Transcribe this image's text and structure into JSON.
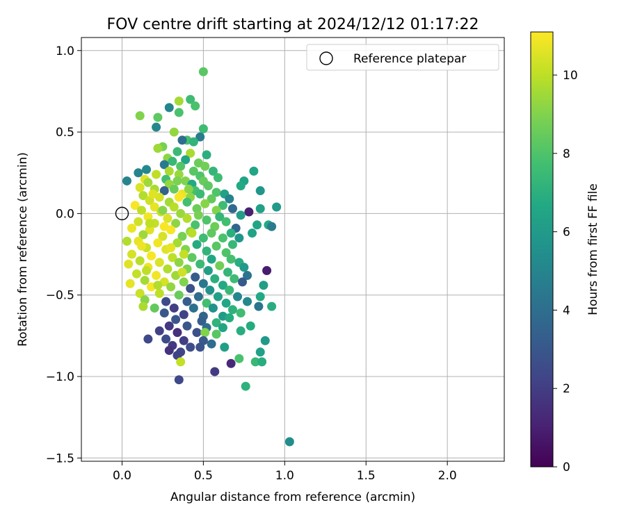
{
  "chart_data": {
    "type": "scatter",
    "title": "FOV centre drift starting at 2024/12/12 01:17:22",
    "xlabel": "Angular distance from reference (arcmin)",
    "ylabel": "Rotation from reference (arcmin)",
    "xlim": [
      -0.25,
      2.35
    ],
    "ylim": [
      -1.52,
      1.08
    ],
    "xticks": [
      0.0,
      0.5,
      1.0,
      1.5,
      2.0
    ],
    "xtick_labels": [
      "0.0",
      "0.5",
      "1.0",
      "1.5",
      "2.0"
    ],
    "yticks": [
      -1.5,
      -1.0,
      -0.5,
      0.0,
      0.5,
      1.0
    ],
    "ytick_labels": [
      "−1.5",
      "−1.0",
      "−0.5",
      "0.0",
      "0.5",
      "1.0"
    ],
    "grid": true,
    "legend": {
      "location": "top-right",
      "entries": [
        "Reference platepar"
      ]
    },
    "reference_point": {
      "x": 0.0,
      "y": 0.0
    },
    "colorbar": {
      "label": "Hours from first FF file",
      "range": [
        0,
        11.1
      ],
      "ticks": [
        0,
        2,
        4,
        6,
        8,
        10
      ],
      "tick_labels": [
        "0",
        "2",
        "4",
        "6",
        "8",
        "10"
      ],
      "colormap": "viridis"
    },
    "points": [
      [
        0.5,
        0.87,
        8.2
      ],
      [
        0.42,
        0.7,
        7.6
      ],
      [
        0.35,
        0.69,
        9.6
      ],
      [
        0.45,
        0.66,
        7.9
      ],
      [
        0.29,
        0.65,
        5.0
      ],
      [
        0.35,
        0.62,
        7.9
      ],
      [
        0.11,
        0.6,
        9.0
      ],
      [
        0.22,
        0.59,
        8.3
      ],
      [
        0.21,
        0.53,
        5.1
      ],
      [
        0.5,
        0.52,
        7.6
      ],
      [
        0.32,
        0.5,
        9.3
      ],
      [
        0.48,
        0.47,
        4.6
      ],
      [
        0.4,
        0.45,
        7.8
      ],
      [
        0.37,
        0.45,
        4.0
      ],
      [
        0.44,
        0.44,
        7.2
      ],
      [
        0.25,
        0.41,
        8.8
      ],
      [
        0.22,
        0.4,
        9.5
      ],
      [
        0.34,
        0.38,
        7.5
      ],
      [
        0.42,
        0.37,
        9.7
      ],
      [
        0.52,
        0.36,
        7.0
      ],
      [
        0.28,
        0.34,
        9.2
      ],
      [
        0.39,
        0.33,
        6.5
      ],
      [
        0.31,
        0.32,
        7.4
      ],
      [
        0.47,
        0.31,
        8.6
      ],
      [
        0.26,
        0.3,
        4.5
      ],
      [
        0.36,
        0.29,
        8.1
      ],
      [
        0.51,
        0.29,
        8.7
      ],
      [
        0.15,
        0.27,
        5.2
      ],
      [
        0.29,
        0.26,
        9.7
      ],
      [
        0.44,
        0.26,
        8.2
      ],
      [
        0.56,
        0.26,
        7.3
      ],
      [
        0.81,
        0.26,
        6.5
      ],
      [
        0.1,
        0.25,
        5.0
      ],
      [
        0.21,
        0.24,
        10.0
      ],
      [
        0.35,
        0.24,
        9.4
      ],
      [
        0.48,
        0.23,
        8.0
      ],
      [
        0.59,
        0.22,
        7.6
      ],
      [
        0.14,
        0.21,
        10.6
      ],
      [
        0.27,
        0.21,
        7.7
      ],
      [
        0.39,
        0.2,
        9.0
      ],
      [
        0.5,
        0.2,
        8.5
      ],
      [
        0.75,
        0.2,
        6.4
      ],
      [
        0.03,
        0.2,
        5.0
      ],
      [
        0.16,
        0.19,
        9.5
      ],
      [
        0.29,
        0.18,
        9.3
      ],
      [
        0.43,
        0.18,
        6.7
      ],
      [
        0.53,
        0.17,
        8.3
      ],
      [
        0.73,
        0.17,
        6.7
      ],
      [
        0.11,
        0.16,
        10.5
      ],
      [
        0.2,
        0.15,
        9.7
      ],
      [
        0.32,
        0.15,
        8.5
      ],
      [
        0.45,
        0.14,
        7.8
      ],
      [
        0.58,
        0.13,
        8.0
      ],
      [
        0.85,
        0.14,
        5.8
      ],
      [
        0.26,
        0.14,
        3.4
      ],
      [
        0.37,
        0.12,
        10.8
      ],
      [
        0.48,
        0.12,
        7.5
      ],
      [
        0.63,
        0.12,
        6.3
      ],
      [
        0.13,
        0.11,
        9.8
      ],
      [
        0.23,
        0.1,
        10.4
      ],
      [
        0.35,
        0.1,
        11.0
      ],
      [
        0.42,
        0.1,
        9.2
      ],
      [
        0.55,
        0.09,
        8.4
      ],
      [
        0.66,
        0.09,
        4.9
      ],
      [
        0.17,
        0.08,
        10.3
      ],
      [
        0.29,
        0.07,
        9.6
      ],
      [
        0.4,
        0.07,
        7.8
      ],
      [
        0.51,
        0.06,
        9.1
      ],
      [
        0.62,
        0.05,
        7.6
      ],
      [
        0.95,
        0.04,
        6.0
      ],
      [
        0.08,
        0.05,
        11.0
      ],
      [
        0.2,
        0.04,
        10.7
      ],
      [
        0.32,
        0.04,
        9.9
      ],
      [
        0.46,
        0.03,
        8.6
      ],
      [
        0.58,
        0.02,
        9.0
      ],
      [
        0.68,
        0.03,
        3.8
      ],
      [
        0.85,
        0.03,
        6.3
      ],
      [
        0.78,
        0.01,
        1.0
      ],
      [
        0.12,
        0.02,
        10.0
      ],
      [
        0.24,
        0.01,
        10.2
      ],
      [
        0.36,
        0.0,
        9.4
      ],
      [
        0.47,
        -0.01,
        8.8
      ],
      [
        0.6,
        -0.02,
        7.3
      ],
      [
        0.73,
        -0.01,
        6.2
      ],
      [
        0.16,
        -0.02,
        10.9
      ],
      [
        0.28,
        -0.03,
        10.5
      ],
      [
        0.4,
        -0.03,
        9.8
      ],
      [
        0.52,
        -0.04,
        8.0
      ],
      [
        0.64,
        -0.05,
        7.7
      ],
      [
        0.1,
        -0.05,
        10.3
      ],
      [
        0.2,
        -0.06,
        10.1
      ],
      [
        0.33,
        -0.06,
        9.2
      ],
      [
        0.45,
        -0.07,
        7.9
      ],
      [
        0.57,
        -0.08,
        8.6
      ],
      [
        0.7,
        -0.09,
        3.6
      ],
      [
        0.83,
        -0.07,
        6.5
      ],
      [
        0.9,
        -0.07,
        6.7
      ],
      [
        0.92,
        -0.08,
        4.6
      ],
      [
        0.06,
        -0.09,
        10.8
      ],
      [
        0.17,
        -0.1,
        10.6
      ],
      [
        0.3,
        -0.1,
        11.0
      ],
      [
        0.42,
        -0.11,
        9.3
      ],
      [
        0.55,
        -0.12,
        8.3
      ],
      [
        0.67,
        -0.12,
        7.0
      ],
      [
        0.8,
        -0.12,
        6.4
      ],
      [
        0.13,
        -0.13,
        9.5
      ],
      [
        0.25,
        -0.14,
        10.4
      ],
      [
        0.37,
        -0.14,
        8.8
      ],
      [
        0.5,
        -0.15,
        7.6
      ],
      [
        0.62,
        -0.15,
        7.9
      ],
      [
        0.72,
        -0.15,
        5.8
      ],
      [
        0.03,
        -0.17,
        9.8
      ],
      [
        0.1,
        -0.17,
        10.7
      ],
      [
        0.22,
        -0.18,
        10.9
      ],
      [
        0.34,
        -0.18,
        9.6
      ],
      [
        0.46,
        -0.19,
        6.8
      ],
      [
        0.58,
        -0.2,
        8.2
      ],
      [
        0.68,
        -0.19,
        7.4
      ],
      [
        0.15,
        -0.21,
        10.2
      ],
      [
        0.27,
        -0.22,
        10.6
      ],
      [
        0.39,
        -0.22,
        9.0
      ],
      [
        0.52,
        -0.23,
        7.2
      ],
      [
        0.64,
        -0.24,
        8.0
      ],
      [
        0.06,
        -0.25,
        10.4
      ],
      [
        0.18,
        -0.26,
        11.0
      ],
      [
        0.31,
        -0.27,
        10.0
      ],
      [
        0.43,
        -0.27,
        8.3
      ],
      [
        0.55,
        -0.28,
        6.6
      ],
      [
        0.67,
        -0.28,
        7.8
      ],
      [
        0.11,
        -0.29,
        9.9
      ],
      [
        0.23,
        -0.3,
        10.5
      ],
      [
        0.35,
        -0.3,
        9.2
      ],
      [
        0.48,
        -0.31,
        7.5
      ],
      [
        0.6,
        -0.32,
        8.7
      ],
      [
        0.72,
        -0.3,
        6.9
      ],
      [
        0.04,
        -0.31,
        10.6
      ],
      [
        0.16,
        -0.33,
        10.8
      ],
      [
        0.28,
        -0.34,
        9.8
      ],
      [
        0.4,
        -0.34,
        8.9
      ],
      [
        0.53,
        -0.35,
        6.2
      ],
      [
        0.65,
        -0.36,
        7.3
      ],
      [
        0.75,
        -0.33,
        6.0
      ],
      [
        0.09,
        -0.37,
        10.1
      ],
      [
        0.21,
        -0.38,
        10.9
      ],
      [
        0.33,
        -0.38,
        9.5
      ],
      [
        0.45,
        -0.39,
        3.2
      ],
      [
        0.57,
        -0.4,
        7.0
      ],
      [
        0.69,
        -0.4,
        7.6
      ],
      [
        0.77,
        -0.38,
        4.2
      ],
      [
        0.89,
        -0.35,
        0.9
      ],
      [
        0.14,
        -0.41,
        9.6
      ],
      [
        0.26,
        -0.42,
        10.4
      ],
      [
        0.38,
        -0.42,
        9.0
      ],
      [
        0.5,
        -0.43,
        4.4
      ],
      [
        0.62,
        -0.44,
        6.7
      ],
      [
        0.74,
        -0.42,
        3.1
      ],
      [
        0.05,
        -0.43,
        10.7
      ],
      [
        0.18,
        -0.45,
        11.0
      ],
      [
        0.3,
        -0.45,
        9.3
      ],
      [
        0.42,
        -0.46,
        2.8
      ],
      [
        0.54,
        -0.47,
        5.6
      ],
      [
        0.66,
        -0.47,
        7.4
      ],
      [
        0.87,
        -0.44,
        6.2
      ],
      [
        0.11,
        -0.49,
        10.2
      ],
      [
        0.23,
        -0.49,
        10.0
      ],
      [
        0.35,
        -0.5,
        8.5
      ],
      [
        0.47,
        -0.51,
        3.9
      ],
      [
        0.59,
        -0.51,
        6.3
      ],
      [
        0.71,
        -0.51,
        5.1
      ],
      [
        0.85,
        -0.51,
        6.7
      ],
      [
        0.14,
        -0.53,
        9.1
      ],
      [
        0.27,
        -0.54,
        2.5
      ],
      [
        0.4,
        -0.54,
        3.3
      ],
      [
        0.52,
        -0.55,
        7.7
      ],
      [
        0.64,
        -0.55,
        6.6
      ],
      [
        0.77,
        -0.54,
        5.2
      ],
      [
        0.13,
        -0.57,
        9.7
      ],
      [
        0.2,
        -0.58,
        8.4
      ],
      [
        0.32,
        -0.58,
        2.0
      ],
      [
        0.44,
        -0.58,
        4.1
      ],
      [
        0.56,
        -0.58,
        5.6
      ],
      [
        0.68,
        -0.59,
        7.1
      ],
      [
        0.84,
        -0.57,
        4.3
      ],
      [
        0.92,
        -0.57,
        6.9
      ],
      [
        0.26,
        -0.61,
        3.0
      ],
      [
        0.38,
        -0.62,
        2.2
      ],
      [
        0.5,
        -0.63,
        3.6
      ],
      [
        0.62,
        -0.63,
        6.0
      ],
      [
        0.73,
        -0.61,
        7.6
      ],
      [
        0.33,
        -0.65,
        2.9
      ],
      [
        0.49,
        -0.66,
        3.3
      ],
      [
        0.58,
        -0.67,
        7.2
      ],
      [
        0.66,
        -0.64,
        6.8
      ],
      [
        0.29,
        -0.69,
        1.8
      ],
      [
        0.4,
        -0.69,
        3.0
      ],
      [
        0.52,
        -0.7,
        4.0
      ],
      [
        0.62,
        -0.7,
        6.5
      ],
      [
        0.79,
        -0.69,
        6.8
      ],
      [
        0.23,
        -0.72,
        2.1
      ],
      [
        0.34,
        -0.73,
        1.5
      ],
      [
        0.46,
        -0.73,
        2.7
      ],
      [
        0.51,
        -0.73,
        9.0
      ],
      [
        0.58,
        -0.74,
        8.2
      ],
      [
        0.73,
        -0.72,
        6.9
      ],
      [
        0.16,
        -0.77,
        2.4
      ],
      [
        0.27,
        -0.77,
        2.5
      ],
      [
        0.38,
        -0.78,
        2.0
      ],
      [
        0.5,
        -0.78,
        3.1
      ],
      [
        0.88,
        -0.78,
        6.0
      ],
      [
        0.31,
        -0.81,
        1.9
      ],
      [
        0.42,
        -0.82,
        2.6
      ],
      [
        0.55,
        -0.8,
        3.9
      ],
      [
        0.63,
        -0.82,
        6.2
      ],
      [
        0.29,
        -0.84,
        1.6
      ],
      [
        0.36,
        -0.85,
        2.3
      ],
      [
        0.48,
        -0.82,
        2.8
      ],
      [
        0.85,
        -0.85,
        6.3
      ],
      [
        0.34,
        -0.87,
        2.2
      ],
      [
        0.72,
        -0.89,
        7.9
      ],
      [
        0.82,
        -0.91,
        7.4
      ],
      [
        0.86,
        -0.91,
        6.9
      ],
      [
        0.36,
        -0.91,
        10.1
      ],
      [
        0.67,
        -0.92,
        1.3
      ],
      [
        0.57,
        -0.97,
        1.9
      ],
      [
        0.35,
        -1.02,
        2.4
      ],
      [
        0.76,
        -1.06,
        7.1
      ],
      [
        1.03,
        -1.4,
        5.4
      ],
      [
        0.17,
        -0.06,
        10.0
      ],
      [
        0.25,
        0.02,
        9.1
      ],
      [
        0.43,
        -0.12,
        9.9
      ],
      [
        0.3,
        -0.21,
        10.7
      ],
      [
        0.37,
        -0.36,
        10.3
      ],
      [
        0.15,
        -0.35,
        10.0
      ],
      [
        0.22,
        -0.44,
        9.8
      ],
      [
        0.41,
        0.15,
        9.1
      ],
      [
        0.34,
        0.2,
        8.9
      ],
      [
        0.19,
        0.12,
        10.6
      ],
      [
        0.38,
        -0.25,
        10.1
      ],
      [
        0.26,
        -0.08,
        11.0
      ],
      [
        0.12,
        -0.2,
        10.8
      ]
    ]
  }
}
